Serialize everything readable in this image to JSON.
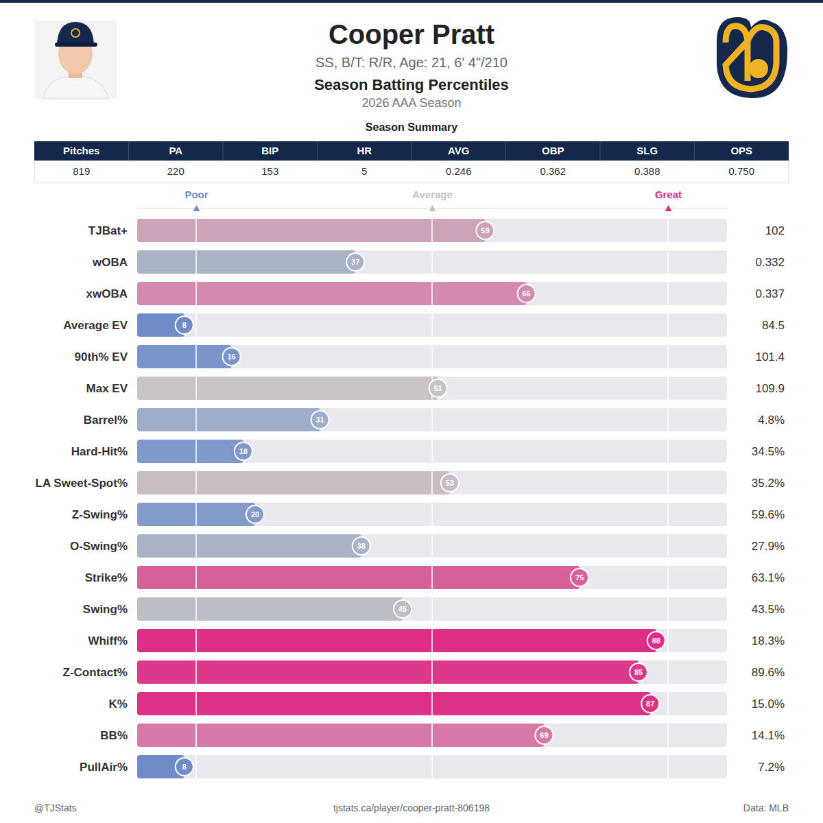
{
  "header": {
    "name": "Cooper Pratt",
    "info": "SS, B/T: R/R, Age: 21, 6' 4\"/210",
    "title": "Season Batting Percentiles",
    "season": "2026 AAA Season"
  },
  "table": {
    "title": "Season Summary",
    "columns": [
      "Pitches",
      "PA",
      "BIP",
      "HR",
      "AVG",
      "OBP",
      "SLG",
      "OPS"
    ],
    "rows": [
      [
        "819",
        "220",
        "153",
        "5",
        "0.246",
        "0.362",
        "0.388",
        "0.750"
      ]
    ]
  },
  "chart_data": {
    "type": "bar",
    "orientation": "horizontal",
    "data_labels": true,
    "grid": true,
    "categories": [
      "TJBat+",
      "wOBA",
      "xwOBA",
      "Average EV",
      "90th% EV",
      "Max EV",
      "Barrel%",
      "Hard-Hit%",
      "LA Sweet-Spot%",
      "Z-Swing%",
      "O-Swing%",
      "Strike%",
      "Swing%",
      "Whiff%",
      "Z-Contact%",
      "K%",
      "BB%",
      "PullAir%"
    ],
    "values": [
      59,
      37,
      66,
      8,
      16,
      51,
      31,
      18,
      53,
      20,
      38,
      75,
      45,
      88,
      85,
      87,
      69,
      8
    ],
    "colors": [
      "#cca3b8",
      "#a8b3c6",
      "#d38aae",
      "#6f8bc8",
      "#7b95ca",
      "#c8c4c6",
      "#9eadcb",
      "#7e98ca",
      "#c9bcc3",
      "#829bc9",
      "#aab3c5",
      "#d6619a",
      "#bcbec7",
      "#dc2f85",
      "#dc3a89",
      "#dc3286",
      "#d57aa6",
      "#6f8bc8"
    ],
    "stat_values": [
      "102",
      "0.332",
      "0.337",
      "84.5",
      "101.4",
      "109.9",
      "4.8%",
      "34.5%",
      "35.2%",
      "59.6%",
      "27.9%",
      "63.1%",
      "43.5%",
      "18.3%",
      "89.6%",
      "15.0%",
      "14.1%",
      "7.2%"
    ],
    "xlim": [
      0,
      100
    ],
    "xticks": [
      {
        "value": 10,
        "label": "Poor"
      },
      {
        "value": 50,
        "label": "Average"
      },
      {
        "value": 90,
        "label": "Great"
      }
    ]
  },
  "footer": {
    "left": "@TJStats",
    "center": "tjstats.ca/player/cooper-pratt-806198",
    "right": "Data: MLB"
  }
}
